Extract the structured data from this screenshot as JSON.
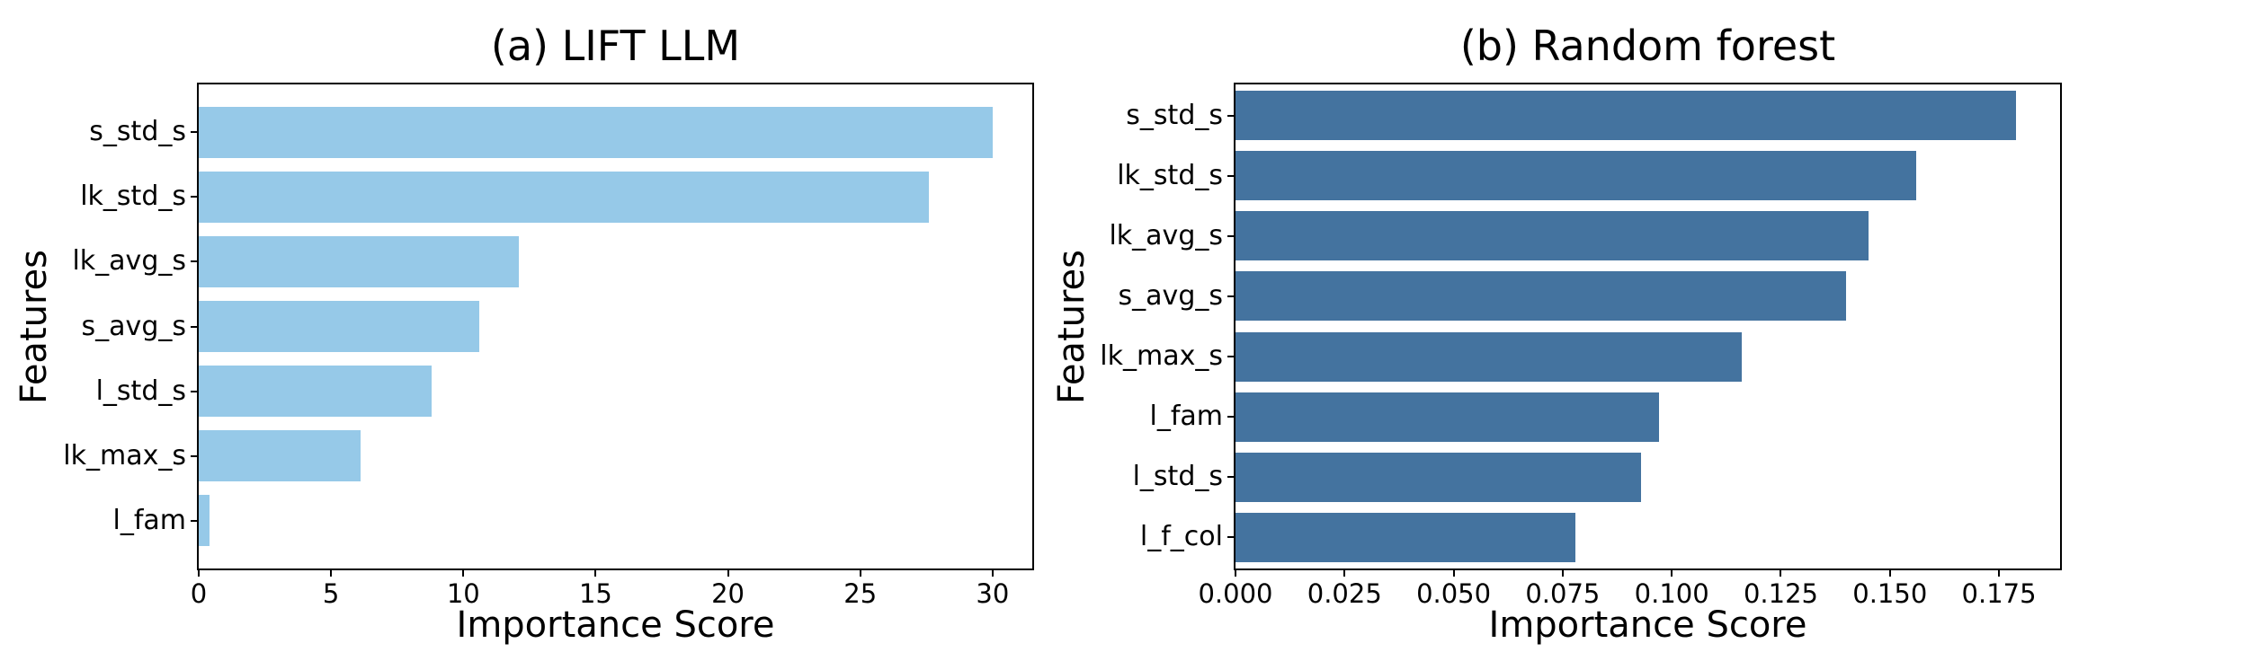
{
  "figure": {
    "background": "#ffffff",
    "text_color": "#000000"
  },
  "chart_data": [
    {
      "type": "bar",
      "orientation": "horizontal",
      "title": "(a) LIFT LLM",
      "xlabel": "Importance Score",
      "ylabel": "Features",
      "categories": [
        "s_std_s",
        "lk_std_s",
        "lk_avg_s",
        "s_avg_s",
        "l_std_s",
        "lk_max_s",
        "l_fam"
      ],
      "values": [
        30.0,
        27.6,
        12.1,
        10.6,
        8.8,
        6.1,
        0.4
      ],
      "xticks": [
        0,
        5,
        10,
        15,
        20,
        25,
        30
      ],
      "xtick_labels": [
        "0",
        "5",
        "10",
        "15",
        "20",
        "25",
        "30"
      ],
      "xlim": [
        0,
        31.5
      ],
      "bar_color": "#96c9e8",
      "grid": false,
      "legend": null
    },
    {
      "type": "bar",
      "orientation": "horizontal",
      "title": "(b) Random forest",
      "xlabel": "Importance Score",
      "ylabel": "Features",
      "categories": [
        "s_std_s",
        "lk_std_s",
        "lk_avg_s",
        "s_avg_s",
        "lk_max_s",
        "l_fam",
        "l_std_s",
        "l_f_col"
      ],
      "values": [
        0.179,
        0.156,
        0.145,
        0.14,
        0.116,
        0.097,
        0.093,
        0.078
      ],
      "xticks": [
        0.0,
        0.025,
        0.05,
        0.075,
        0.1,
        0.125,
        0.15,
        0.175
      ],
      "xtick_labels": [
        "0.000",
        "0.025",
        "0.050",
        "0.075",
        "0.100",
        "0.125",
        "0.150",
        "0.175"
      ],
      "xlim": [
        0,
        0.189
      ],
      "bar_color": "#44739f",
      "grid": false,
      "legend": null
    }
  ]
}
